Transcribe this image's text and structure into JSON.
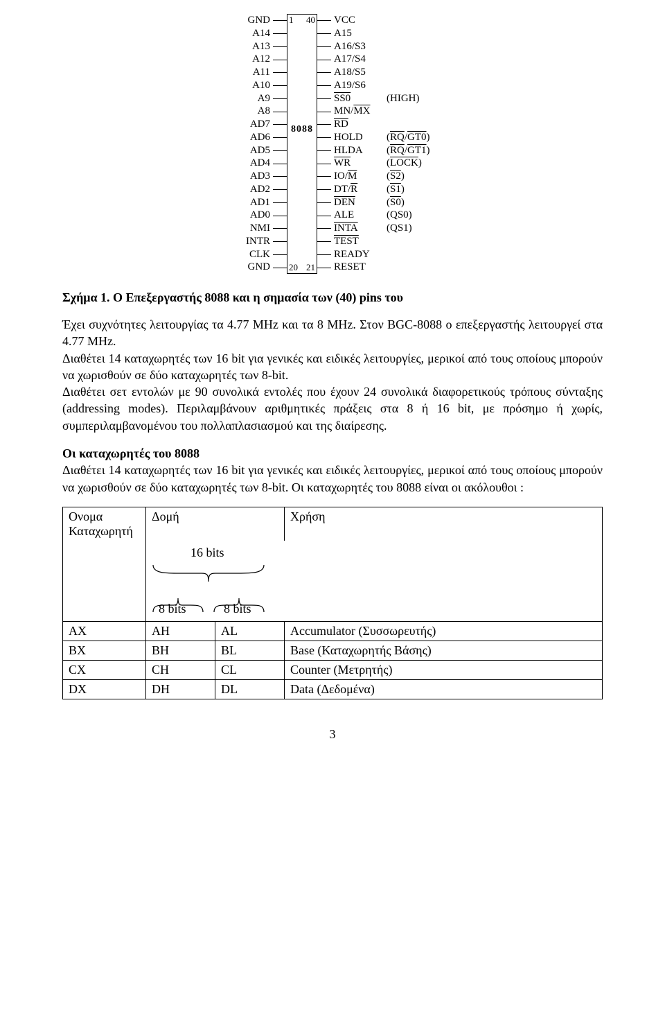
{
  "pinout": {
    "chip_label": "8088",
    "corner_tl": "1",
    "corner_tr": "40",
    "corner_bl": "20",
    "corner_br": "21",
    "rows": [
      {
        "l": "GND",
        "r": "VCC",
        "alt": ""
      },
      {
        "l": "A14",
        "r": "A15",
        "alt": ""
      },
      {
        "l": "A13",
        "r": "A16/S3",
        "alt": ""
      },
      {
        "l": "A12",
        "r": "A17/S4",
        "alt": ""
      },
      {
        "l": "A11",
        "r": "A18/S5",
        "alt": ""
      },
      {
        "l": "A10",
        "r": "A19/S6",
        "alt": ""
      },
      {
        "l": "A9",
        "r": "<span class='ovl'>SS0</span>",
        "alt": "(HIGH)"
      },
      {
        "l": "A8",
        "r": "MN/<span class='ovl'>MX</span>",
        "alt": ""
      },
      {
        "l": "AD7",
        "r": "<span class='ovl'>RD</span>",
        "alt": ""
      },
      {
        "l": "AD6",
        "r": "HOLD",
        "alt": "(<span class='ovl'>RQ</span>/<span class='ovl'>GT0</span>)"
      },
      {
        "l": "AD5",
        "r": "HLDA",
        "alt": "(<span class='ovl'>RQ</span>/<span class='ovl'>GT1</span>)"
      },
      {
        "l": "AD4",
        "r": "<span class='ovl'>WR</span>",
        "alt": "(<span class='ovl'>LOCK</span>)"
      },
      {
        "l": "AD3",
        "r": "IO/<span class='ovl'>M</span>",
        "alt": "(<span class='ovl'>S2</span>)"
      },
      {
        "l": "AD2",
        "r": "DT/<span class='ovl'>R</span>",
        "alt": "(<span class='ovl'>S1</span>)"
      },
      {
        "l": "AD1",
        "r": "<span class='ovl'>DEN</span>",
        "alt": "(<span class='ovl'>S0</span>)"
      },
      {
        "l": "AD0",
        "r": "ALE",
        "alt": "(QS0)"
      },
      {
        "l": "NMI",
        "r": "<span class='ovl'>INTA</span>",
        "alt": "(QS1)"
      },
      {
        "l": "INTR",
        "r": "<span class='ovl'>TEST</span>",
        "alt": ""
      },
      {
        "l": "CLK",
        "r": "READY",
        "alt": ""
      },
      {
        "l": "GND",
        "r": "RESET",
        "alt": ""
      }
    ]
  },
  "caption": "Σχήμα 1. Ο Επεξεργαστής 8088 και η σημασία των (40) pins του",
  "para1": "Έχει συχνότητες λειτουργίας τα 4.77 MHz και τα 8 MHz. Στον BGC-8088 ο επεξεργαστής λειτουργεί στα 4.77 MHz.",
  "para2": "Διαθέτει 14 καταχωρητές των 16 bit για γενικές και ειδικές λειτουργίες, μερικοί από τους οποίους μπορούν να χωρισθούν σε δύο καταχωρητές των 8-bit.",
  "para3": "Διαθέτει σετ εντολών με 90 συνολικά εντολές που έχουν 24 συνολικά διαφορετικούς τρόπους σύνταξης (addressing modes). Περιλαμβάνουν αριθμητικές πράξεις στα 8 ή 16 bit, με πρόσημο ή χωρίς, συμπεριλαμβανομένου του πολλαπλασιασμού και της διαίρεσης.",
  "subhead2": "Οι καταχωρητές του 8088",
  "para4": "Διαθέτει 14 καταχωρητές των 16 bit για γενικές και ειδικές λειτουργίες, μερικοί από τους οποίους μπορούν να χωρισθούν σε δύο καταχωρητές των 8-bit. Οι καταχωρητές του 8088 είναι οι ακόλουθοι :",
  "table": {
    "h1": "Ονομα Καταχωρητή",
    "h2": "Δομή",
    "h3": "Χρήση",
    "bits16": "16 bits",
    "bits8": "8 bits",
    "rows": [
      {
        "n": "AX",
        "h": "AH",
        "l": "AL",
        "u": "Accumulator (Συσσωρευτής)"
      },
      {
        "n": "BX",
        "h": "BH",
        "l": "BL",
        "u": "Base (Καταχωρητής Βάσης)"
      },
      {
        "n": "CX",
        "h": "CH",
        "l": "CL",
        "u": "Counter (Μετρητής)"
      },
      {
        "n": "DX",
        "h": "DH",
        "l": "DL",
        "u": "Data (Δεδομένα)"
      }
    ]
  },
  "pagenum": "3"
}
